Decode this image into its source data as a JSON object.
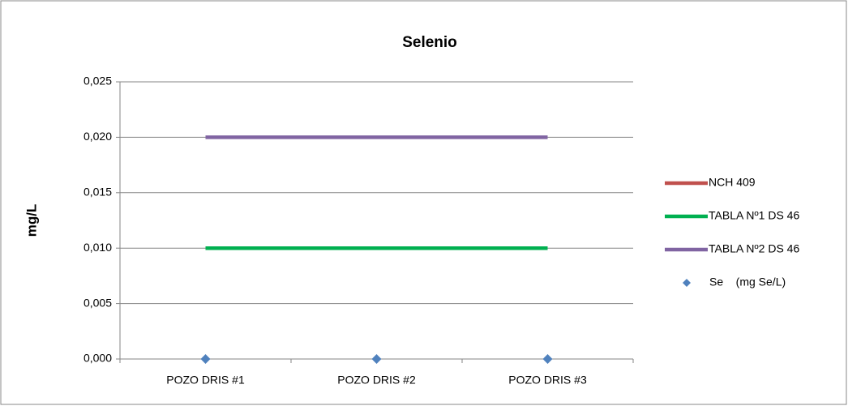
{
  "chart_data": {
    "type": "line",
    "title": "Selenio",
    "ylabel": "mg/L",
    "categories": [
      "POZO DRIS #1",
      "POZO DRIS #2",
      "POZO DRIS #3"
    ],
    "series": [
      {
        "name": "NCH 409",
        "color": "#c0504d",
        "type": "line",
        "values": [
          0.01,
          0.01,
          0.01
        ]
      },
      {
        "name": "TABLA Nº1 DS 46",
        "color": "#00b050",
        "type": "line",
        "values": [
          0.01,
          0.01,
          0.01
        ]
      },
      {
        "name": "TABLA Nº2 DS 46",
        "color": "#8064a2",
        "type": "line",
        "values": [
          0.02,
          0.02,
          0.02
        ]
      },
      {
        "name": "Se    (mg Se/L)",
        "color": "#4f81bd",
        "type": "scatter",
        "values": [
          0,
          0,
          0
        ]
      }
    ],
    "ylim": [
      0,
      0.025
    ],
    "yticks": [
      {
        "value": 0,
        "label": "0,000"
      },
      {
        "value": 0.005,
        "label": "0,005"
      },
      {
        "value": 0.01,
        "label": "0,010"
      },
      {
        "value": 0.015,
        "label": "0,015"
      },
      {
        "value": 0.02,
        "label": "0,020"
      },
      {
        "value": 0.025,
        "label": "0,025"
      }
    ],
    "grid": true,
    "legend": "right"
  }
}
